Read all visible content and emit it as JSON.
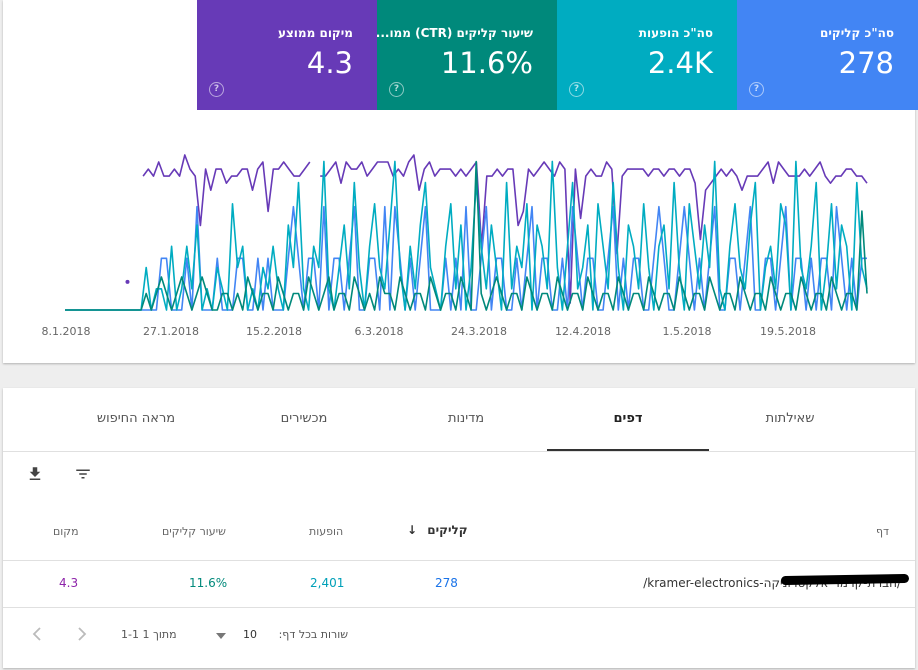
{
  "metrics": [
    {
      "id": "clicks",
      "label": "סה\"כ קליקים",
      "value": "278",
      "color": "#4285f4"
    },
    {
      "id": "impressions",
      "label": "סה\"כ הופעות",
      "value": "2.4K",
      "color": "#00acc1"
    },
    {
      "id": "ctr",
      "label": "שיעור קליקים (CTR) ממו...",
      "value": "11.6%",
      "color": "#00897b"
    },
    {
      "id": "position",
      "label": "מיקום ממוצע",
      "value": "4.3",
      "color": "#673ab7"
    }
  ],
  "chart_data": {
    "type": "line",
    "x_tick_labels": [
      "8.1.2018",
      "27.1.2018",
      "15.2.2018",
      "6.3.2018",
      "24.3.2018",
      "12.4.2018",
      "1.5.2018",
      "19.5.2018"
    ],
    "series": [
      {
        "color": "#673ab7",
        "values": [
          null,
          null,
          null,
          null,
          null,
          null,
          null,
          null,
          null,
          null,
          null,
          null,
          18,
          null,
          null,
          3,
          2,
          3,
          1,
          3,
          3,
          2,
          3,
          0,
          2,
          3,
          10,
          2,
          5,
          2,
          2,
          4,
          3,
          3,
          2,
          2,
          5,
          2,
          1,
          8,
          2,
          2,
          1,
          2,
          3,
          3,
          2,
          1,
          null,
          3,
          3,
          2,
          1,
          4,
          1,
          2,
          2,
          1,
          3,
          2,
          1,
          1,
          1,
          3,
          2,
          3,
          1,
          0,
          5,
          2,
          1,
          3,
          2,
          2,
          2,
          3,
          2,
          3,
          2,
          1,
          13,
          3,
          3,
          2,
          3,
          2,
          2,
          10,
          8,
          2,
          3,
          2,
          1,
          2,
          3,
          1,
          2,
          21,
          2,
          9,
          3,
          2,
          3,
          3,
          1,
          2,
          14,
          3,
          2,
          2,
          2,
          2,
          3,
          2,
          2,
          3,
          2,
          2,
          3,
          2,
          2,
          4,
          12,
          5,
          4,
          3,
          2,
          3,
          2,
          3,
          5,
          3,
          3,
          3,
          2,
          1,
          4,
          1,
          2,
          3,
          3,
          3,
          2,
          3,
          2,
          1,
          3,
          4,
          3,
          3,
          2,
          2,
          3,
          3,
          4
        ]
      },
      {
        "color": "#4285f4",
        "values": [
          0,
          0,
          0,
          0,
          0,
          0,
          0,
          0,
          0,
          0,
          0,
          0,
          0,
          0,
          0,
          0,
          0,
          0,
          0,
          1,
          1,
          0,
          0,
          0,
          1,
          0,
          2,
          0,
          0,
          0,
          1,
          0,
          0,
          0,
          1,
          1,
          0,
          0,
          1,
          0,
          1,
          0,
          0,
          0,
          1,
          2,
          1,
          0,
          1,
          1,
          0,
          2,
          0,
          1,
          1,
          0,
          1,
          2,
          0,
          0,
          1,
          1,
          0,
          2,
          0,
          2,
          1,
          0,
          1,
          0,
          1,
          2,
          0,
          0,
          0,
          1,
          0,
          1,
          0,
          2,
          0,
          0,
          1,
          2,
          0,
          1,
          1,
          0,
          0,
          1,
          0,
          1,
          2,
          0,
          1,
          1,
          0,
          0,
          1,
          0,
          2,
          1,
          0,
          1,
          1,
          0,
          0,
          1,
          2,
          0,
          1,
          0,
          1,
          1,
          0,
          0,
          1,
          2,
          1,
          0,
          0,
          1,
          2,
          1,
          0,
          1,
          0,
          1,
          2,
          0,
          0,
          1,
          1,
          0,
          1,
          2,
          0,
          0,
          1,
          1,
          0,
          1,
          2,
          0,
          1,
          1,
          0,
          1,
          0,
          1,
          1,
          0,
          2,
          1,
          0,
          1,
          0,
          1,
          1
        ]
      },
      {
        "color": "#00acc1",
        "values": [
          0,
          0,
          0,
          0,
          0,
          0,
          0,
          0,
          0,
          0,
          0,
          0,
          0,
          0,
          0,
          0,
          2,
          0,
          1,
          1,
          0,
          3,
          0,
          1,
          3,
          1,
          4,
          0,
          1,
          0,
          2,
          1,
          0,
          5,
          2,
          3,
          0,
          1,
          0,
          2,
          1,
          3,
          1,
          0,
          4,
          2,
          6,
          1,
          0,
          3,
          2,
          7,
          1,
          0,
          2,
          4,
          1,
          6,
          2,
          0,
          3,
          5,
          2,
          1,
          4,
          7,
          2,
          0,
          3,
          1,
          4,
          6,
          2,
          1,
          0,
          3,
          5,
          1,
          4,
          0,
          2,
          6,
          3,
          1,
          4,
          2,
          0,
          6,
          1,
          3,
          2,
          5,
          0,
          4,
          3,
          1,
          7,
          2,
          0,
          3,
          6,
          1,
          2,
          4,
          0,
          5,
          3,
          1,
          6,
          2,
          0,
          4,
          3,
          1,
          5,
          2,
          0,
          3,
          4,
          1,
          6,
          2,
          0,
          5,
          3,
          1,
          4,
          2,
          7,
          1,
          0,
          3,
          5,
          2,
          1,
          4,
          6,
          0,
          2,
          3,
          1,
          5,
          4,
          0,
          7,
          2,
          1,
          3,
          6,
          0,
          2,
          5,
          1,
          4,
          3,
          0,
          6,
          2,
          1
        ]
      },
      {
        "color": "#00897b",
        "values": [
          0,
          0,
          0,
          0,
          0,
          0,
          0,
          0,
          0,
          0,
          0,
          0,
          0,
          0,
          0,
          0,
          1,
          0,
          1,
          2,
          1,
          0,
          1,
          2,
          1,
          0,
          1,
          2,
          1,
          0,
          0,
          1,
          1,
          0,
          1,
          0,
          2,
          1,
          0,
          1,
          1,
          0,
          2,
          1,
          0,
          1,
          1,
          0,
          2,
          1,
          0,
          1,
          2,
          0,
          1,
          1,
          0,
          2,
          1,
          0,
          1,
          0,
          2,
          1,
          1,
          0,
          2,
          1,
          0,
          1,
          1,
          0,
          2,
          1,
          0,
          1,
          1,
          0,
          2,
          1,
          0,
          9,
          1,
          0,
          1,
          2,
          1,
          0,
          1,
          1,
          0,
          2,
          1,
          0,
          1,
          1,
          0,
          2,
          1,
          0,
          1,
          1,
          0,
          2,
          1,
          0,
          1,
          1,
          0,
          2,
          1,
          0,
          1,
          1,
          0,
          2,
          1,
          0,
          1,
          1,
          0,
          2,
          1,
          0,
          1,
          1,
          0,
          2,
          1,
          0,
          1,
          1,
          0,
          2,
          1,
          0,
          1,
          1,
          0,
          2,
          1,
          0,
          1,
          1,
          0,
          2,
          1,
          0,
          1,
          1,
          0,
          2,
          1,
          0,
          1,
          1,
          0,
          6,
          1
        ]
      }
    ]
  },
  "tabs": [
    "שאילתות",
    "דפים",
    "מדינות",
    "מכשירים",
    "מראה החיפוש"
  ],
  "table": {
    "headers": {
      "page": "דף",
      "clicks": "קליקים",
      "impressions": "הופעות",
      "ctr": "שיעור קליקים",
      "position": "מקום"
    },
    "row": {
      "url": "/kramer-electronics-חברת-קרמר-אלקטרוניקה/",
      "clicks": "278",
      "impressions": "2,401",
      "ctr": "11.6%",
      "position": "4.3"
    }
  },
  "footer": {
    "rows_label": "שורות בכל דף:",
    "rows_value": "10",
    "range": "1-1 מתוך 1"
  }
}
